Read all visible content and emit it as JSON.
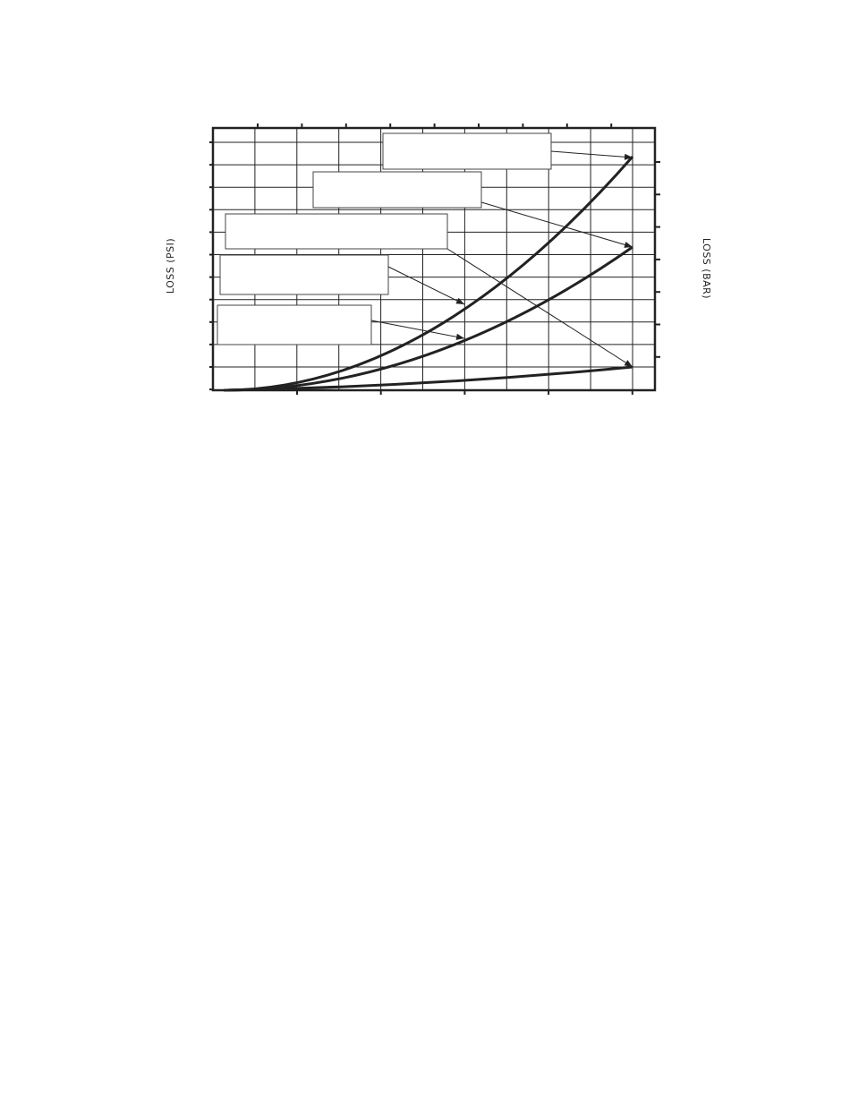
{
  "chart_data": {
    "type": "line",
    "y_label": "LOSS (PSI)",
    "y2_label": "LOSS (BAR)"
  }
}
